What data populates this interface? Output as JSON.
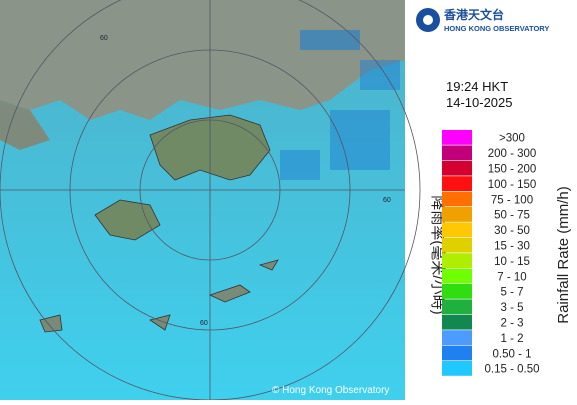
{
  "header": {
    "org_chinese": "香港天文台",
    "org_english": "HONG KONG OBSERVATORY"
  },
  "time": "19:24 HKT",
  "date": "14-10-2025",
  "legend": {
    "title_chinese": "降雨率(毫米/小時)",
    "title_english": "Rainfall Rate (mm/h)",
    "items": [
      {
        "label": ">300",
        "color": "#ff00ff"
      },
      {
        "label": "200 - 300",
        "color": "#c0007a"
      },
      {
        "label": "150 - 200",
        "color": "#d40030"
      },
      {
        "label": "100 - 150",
        "color": "#ff1010"
      },
      {
        "label": "75 - 100",
        "color": "#ff7000"
      },
      {
        "label": "50 - 75",
        "color": "#f0a000"
      },
      {
        "label": "30 - 50",
        "color": "#ffc800"
      },
      {
        "label": "15 - 30",
        "color": "#e0d000"
      },
      {
        "label": "10 - 15",
        "color": "#b0ee00"
      },
      {
        "label": "7 - 10",
        "color": "#70ff00"
      },
      {
        "label": "5 - 7",
        "color": "#30dd10"
      },
      {
        "label": "3 - 5",
        "color": "#20b040"
      },
      {
        "label": "2 - 3",
        "color": "#108850"
      },
      {
        "label": "1 - 2",
        "color": "#4c9cff"
      },
      {
        "label": "0.50 - 1",
        "color": "#2080f0"
      },
      {
        "label": "0.15 - 0.50",
        "color": "#20c8ff"
      }
    ]
  },
  "map": {
    "ring_labels": [
      "60",
      "60",
      "60"
    ],
    "copyright": "© Hong Kong Observatory"
  }
}
